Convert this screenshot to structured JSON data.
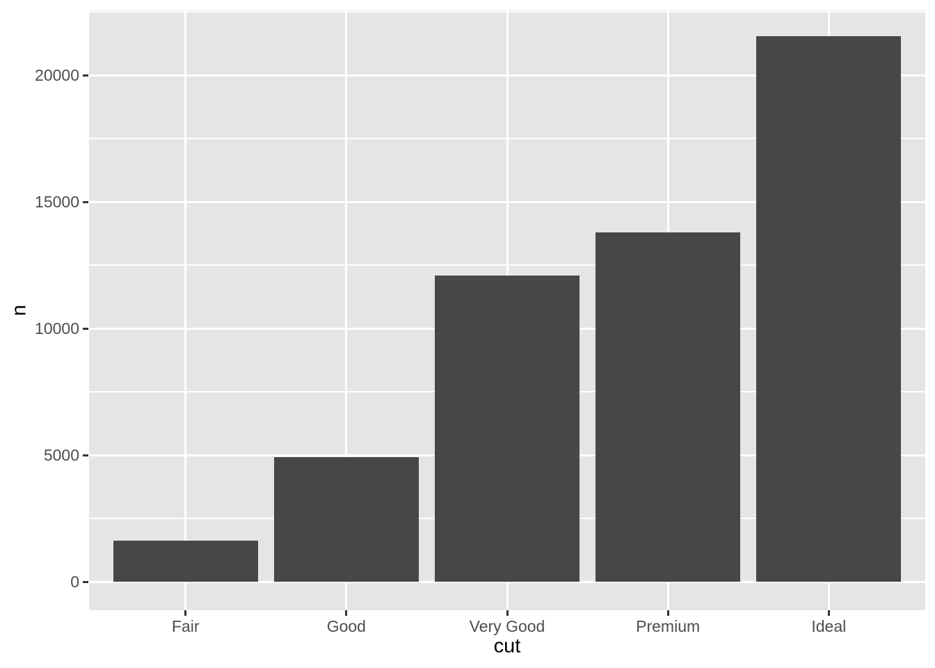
{
  "chart_data": {
    "type": "bar",
    "title": "",
    "xlabel": "cut",
    "ylabel": "n",
    "categories": [
      "Fair",
      "Good",
      "Very Good",
      "Premium",
      "Ideal"
    ],
    "values": [
      1610,
      4906,
      12082,
      13791,
      21551
    ],
    "y_axis": {
      "major_ticks": [
        0,
        5000,
        10000,
        15000,
        20000
      ],
      "tick_labels": [
        "0",
        "5000",
        "10000",
        "15000",
        "20000"
      ],
      "minor_ticks": [
        2500,
        7500,
        12500,
        17500,
        22500
      ],
      "range": [
        -1127,
        22629
      ]
    },
    "grid": "white major and minor horizontal gridlines; white major vertical gridlines at category centers",
    "legend": "none",
    "theme": "ggplot2 theme_grey",
    "colors": {
      "bar_fill": "#474747",
      "panel_background": "#E5E5E5",
      "gridline": "#FFFFFF",
      "tick_mark": "#333333",
      "tick_label": "#4D4D4D",
      "axis_title": "#000000",
      "figure_background": "#FFFFFF"
    }
  }
}
